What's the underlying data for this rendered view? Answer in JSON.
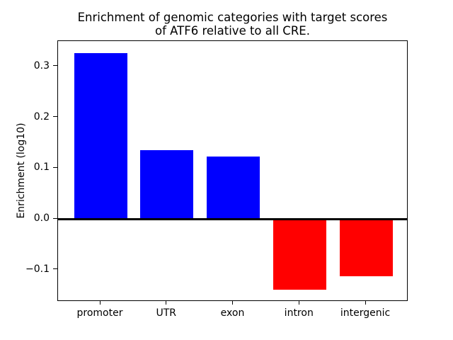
{
  "figure": {
    "background": "#ffffff"
  },
  "chart_data": {
    "type": "bar",
    "title": "Enrichment of genomic categories with target scores\nof ATF6 relative to all CRE.",
    "xlabel": "",
    "ylabel": "Enrichment (log10)",
    "categories": [
      "promoter",
      "UTR",
      "exon",
      "intron",
      "intergenic"
    ],
    "values": [
      0.326,
      0.135,
      0.123,
      -0.14,
      -0.113
    ],
    "bar_colors": [
      "#0000ff",
      "#0000ff",
      "#0000ff",
      "#ff0000",
      "#ff0000"
    ],
    "positive_color": "#0000ff",
    "negative_color": "#ff0000",
    "bar_width_units": 0.8,
    "xlim": [
      -0.64,
      4.64
    ],
    "ylim": [
      -0.163,
      0.35
    ],
    "yticks": [
      -0.1,
      0.0,
      0.1,
      0.2,
      0.3
    ],
    "ytick_labels": [
      "−0.1",
      "0.0",
      "0.1",
      "0.2",
      "0.3"
    ],
    "zero_line": true,
    "grid": false,
    "legend": null,
    "axis_color": "#000000",
    "text_color": "#000000"
  }
}
